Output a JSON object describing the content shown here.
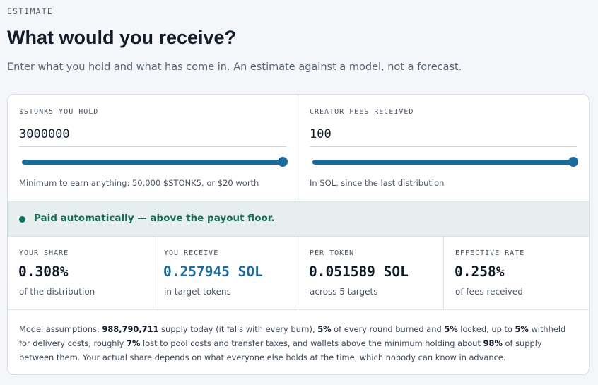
{
  "header": {
    "eyebrow": "ESTIMATE",
    "title": "What would you receive?",
    "subtitle": "Enter what you hold and what has come in. An estimate against a model, not a forecast."
  },
  "inputs": {
    "holdings": {
      "label": "$STONK5 YOU HOLD",
      "value": "3000000",
      "slider_fraction": 1.0,
      "hint": "Minimum to earn anything: 50,000 $STONK5, or $20 worth"
    },
    "fees": {
      "label": "CREATOR FEES RECEIVED",
      "value": "100",
      "slider_fraction": 1.0,
      "hint": "In SOL, since the last distribution"
    }
  },
  "status": {
    "text": "Paid automatically — above the payout floor.",
    "color": "#0f7561"
  },
  "stats": [
    {
      "label": "YOUR SHARE",
      "value": "0.308%",
      "sub": "of the distribution"
    },
    {
      "label": "YOU RECEIVE",
      "value": "0.257945 SOL",
      "sub": "in target tokens"
    },
    {
      "label": "PER TOKEN",
      "value": "0.051589 SOL",
      "sub": "across 5 targets"
    },
    {
      "label": "EFFECTIVE RATE",
      "value": "0.258%",
      "sub": "of fees received"
    }
  ],
  "assumptions": {
    "parts": [
      {
        "text": "Model assumptions: ",
        "bold": false
      },
      {
        "text": "988,790,711",
        "bold": true
      },
      {
        "text": " supply today (it falls with every burn), ",
        "bold": false
      },
      {
        "text": "5%",
        "bold": true
      },
      {
        "text": " of every round burned and ",
        "bold": false
      },
      {
        "text": "5%",
        "bold": true
      },
      {
        "text": " locked, up to ",
        "bold": false
      },
      {
        "text": "5%",
        "bold": true
      },
      {
        "text": " withheld for delivery costs, roughly ",
        "bold": false
      },
      {
        "text": "7%",
        "bold": true
      },
      {
        "text": " lost to pool costs and transfer taxes, and wallets above the minimum holding about ",
        "bold": false
      },
      {
        "text": "98%",
        "bold": true
      },
      {
        "text": " of supply between them. Your actual share depends on what everyone else holds at the time, which nobody can know in advance.",
        "bold": false
      }
    ]
  },
  "colors": {
    "accent": "#1b6a9c",
    "status_bg": "#e6efee"
  }
}
